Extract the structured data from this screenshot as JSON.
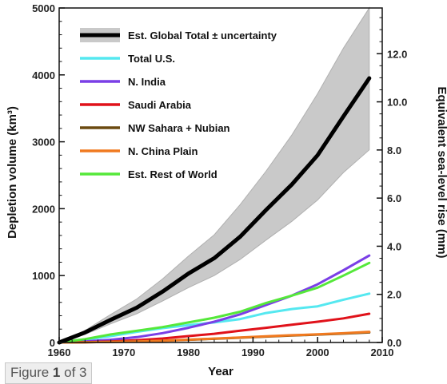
{
  "chart_data": {
    "type": "line",
    "title": "",
    "xlabel": "Year",
    "ylabel": "Depletion volume (km³)",
    "ylabel_right": "Equivalent sea-level rise (mm)",
    "xlim": [
      1960,
      2010
    ],
    "ylim": [
      0,
      5000
    ],
    "ylim_right": [
      0,
      13.9
    ],
    "x_ticks": [
      "1960",
      "1970",
      "1980",
      "1990",
      "2000",
      "2010"
    ],
    "y_ticks": [
      "0",
      "1000",
      "2000",
      "3000",
      "4000",
      "5000"
    ],
    "y_ticks_right": [
      "0.0",
      "2.0",
      "4.0",
      "6.0",
      "8.0",
      "10.0",
      "12.0"
    ],
    "legend_position": "top-left",
    "grid": false,
    "x": [
      1960,
      1964,
      1968,
      1972,
      1976,
      1980,
      1984,
      1988,
      1992,
      1996,
      2000,
      2004,
      2008
    ],
    "series": [
      {
        "name": "Est. Global Total ± uncertainty",
        "color": "#000000",
        "values": [
          0,
          150,
          340,
          520,
          760,
          1030,
          1260,
          1580,
          1980,
          2360,
          2800,
          3380,
          3950
        ],
        "lower": [
          0,
          120,
          280,
          430,
          620,
          820,
          1000,
          1240,
          1530,
          1810,
          2130,
          2540,
          2880
        ],
        "upper": [
          0,
          180,
          420,
          650,
          950,
          1290,
          1610,
          2060,
          2560,
          3100,
          3720,
          4400,
          5000
        ]
      },
      {
        "name": "Total U.S.",
        "color": "#55e8f0",
        "values": [
          0,
          40,
          95,
          160,
          215,
          260,
          300,
          350,
          440,
          500,
          540,
          640,
          730
        ]
      },
      {
        "name": "N. India",
        "color": "#7a3fe6",
        "values": [
          0,
          15,
          40,
          80,
          140,
          220,
          310,
          420,
          560,
          700,
          870,
          1080,
          1300
        ]
      },
      {
        "name": "Saudi Arabia",
        "color": "#e0121a",
        "values": [
          0,
          5,
          15,
          35,
          60,
          95,
          130,
          175,
          220,
          265,
          310,
          360,
          430
        ]
      },
      {
        "name": "NW Sahara + Nubian",
        "color": "#6b4a10",
        "values": [
          0,
          3,
          8,
          15,
          25,
          40,
          55,
          72,
          88,
          104,
          118,
          132,
          150
        ]
      },
      {
        "name": "N. China Plain",
        "color": "#f07a20",
        "values": [
          0,
          3,
          8,
          16,
          27,
          42,
          58,
          75,
          92,
          108,
          122,
          138,
          160
        ]
      },
      {
        "name": "Est. Rest of World",
        "color": "#55e83a",
        "values": [
          0,
          50,
          120,
          175,
          230,
          300,
          370,
          460,
          590,
          700,
          820,
          1000,
          1190
        ]
      }
    ]
  },
  "figure_badge": {
    "prefix": "Figure",
    "number": "1",
    "suffix": "of 3"
  }
}
